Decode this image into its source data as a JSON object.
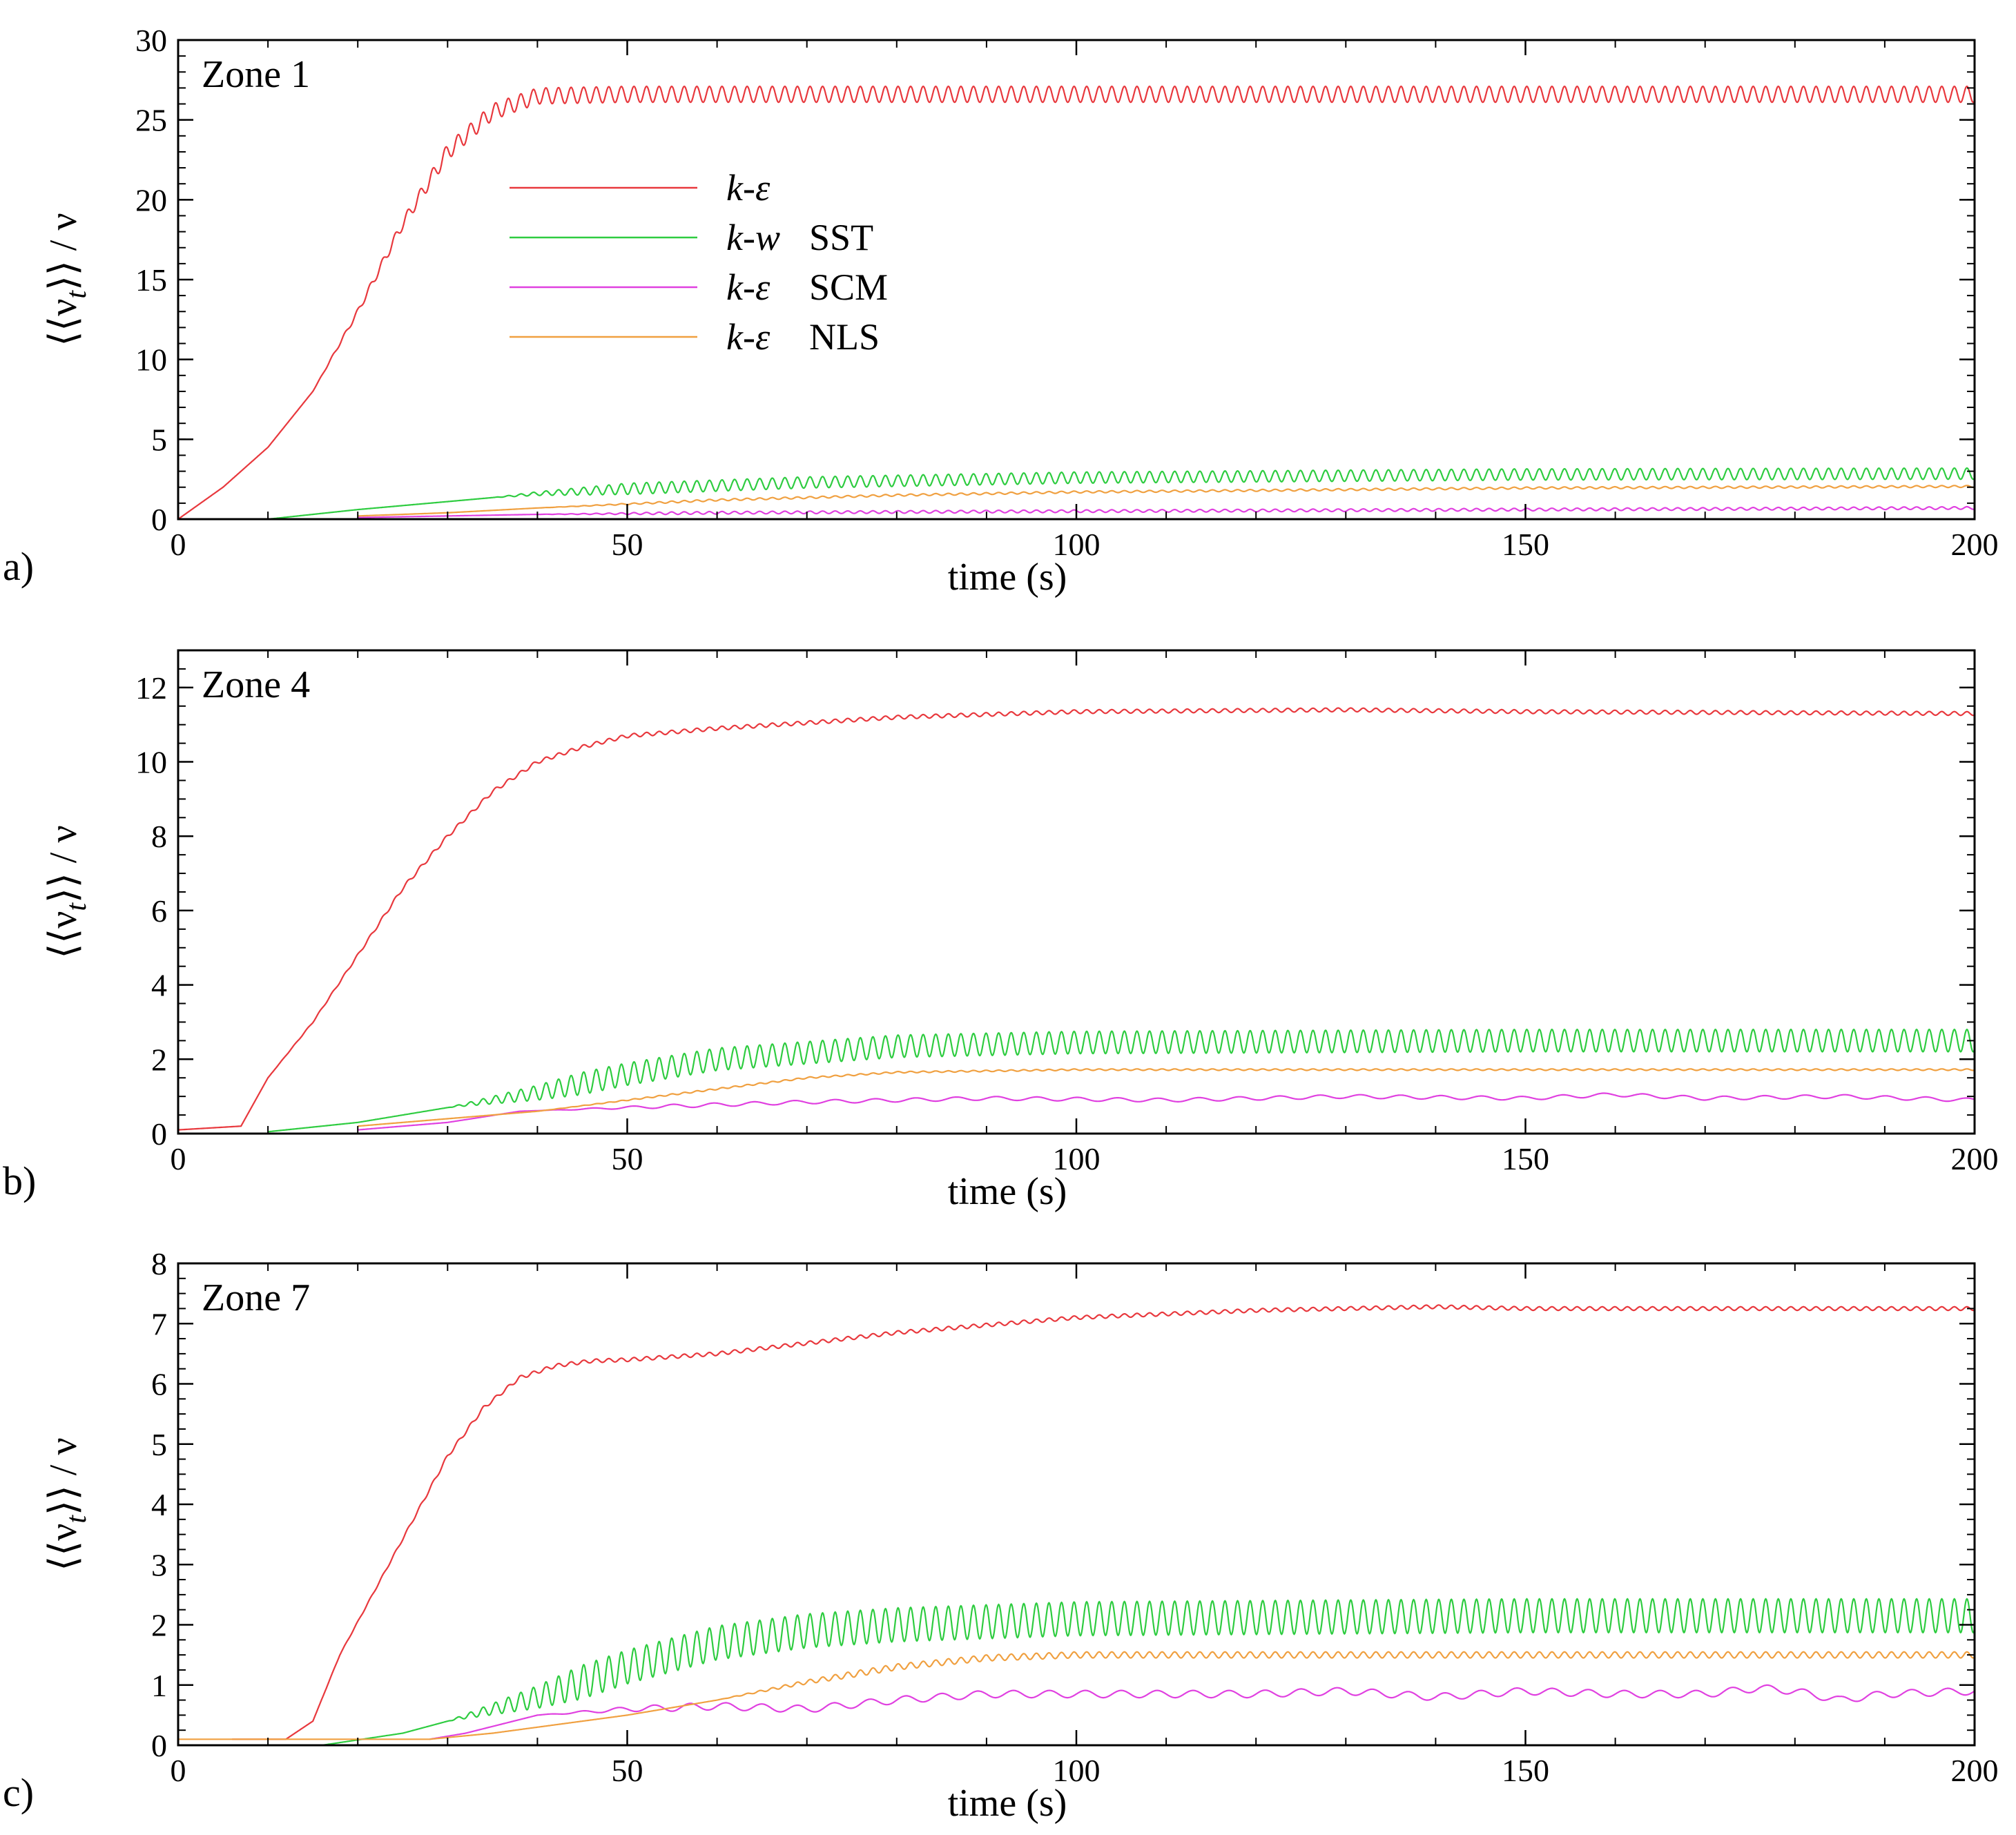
{
  "chart_data": [
    {
      "type": "line",
      "panel_label": "a)",
      "title": "Zone 1",
      "xlabel": "time (s)",
      "ylabel": "⟨⟨ν_t⟩⟩ / ν",
      "ylabel_main": "⟨⟨ν",
      "ylabel_sub": "t",
      "ylabel_tail": "⟩⟩ / ν",
      "xlim": [
        0,
        200
      ],
      "ylim": [
        0,
        30
      ],
      "xticks": [
        "0",
        "50",
        "100",
        "150",
        "200"
      ],
      "yticks": [
        "0",
        "5",
        "10",
        "15",
        "20",
        "25",
        "30"
      ],
      "legend": [
        {
          "name": "k-ε",
          "model": "k-ε",
          "suffix": "",
          "color": "#e8383d"
        },
        {
          "name": "k-w SST",
          "model": "k-w",
          "suffix": "SST",
          "color": "#2ecc40"
        },
        {
          "name": "k-ε SCM",
          "model": "k-ε",
          "suffix": "SCM",
          "color": "#e040e0"
        },
        {
          "name": "k-ε NLS",
          "model": "k-ε",
          "suffix": "NLS",
          "color": "#f0a040"
        }
      ],
      "series": [
        {
          "name": "k-ε",
          "color": "#e8383d",
          "x": [
            0,
            5,
            10,
            15,
            20,
            25,
            30,
            35,
            40,
            50,
            100,
            150,
            200
          ],
          "y": [
            0,
            2,
            4.5,
            8,
            13,
            18.5,
            23,
            25.5,
            26.5,
            26.6,
            26.6,
            26.6,
            26.6
          ],
          "osc_amp": 0.5,
          "osc_period": 1.4,
          "osc_start": 15
        },
        {
          "name": "k-w SST",
          "color": "#2ecc40",
          "x": [
            10,
            20,
            30,
            40,
            50,
            70,
            100,
            150,
            200
          ],
          "y": [
            0,
            0.6,
            1.1,
            1.6,
            1.9,
            2.3,
            2.6,
            2.8,
            2.85
          ],
          "osc_amp": 0.35,
          "osc_period": 1.4,
          "osc_start": 35
        },
        {
          "name": "k-ε SCM",
          "color": "#e040e0",
          "x": [
            20,
            40,
            60,
            100,
            150,
            200
          ],
          "y": [
            0.1,
            0.3,
            0.4,
            0.5,
            0.6,
            0.7
          ],
          "osc_amp": 0.08,
          "osc_period": 1.4,
          "osc_start": 40
        },
        {
          "name": "k-ε NLS",
          "color": "#f0a040",
          "x": [
            20,
            30,
            40,
            60,
            80,
            100,
            150,
            200
          ],
          "y": [
            0.2,
            0.4,
            0.7,
            1.2,
            1.5,
            1.7,
            1.95,
            2.05
          ],
          "osc_amp": 0.06,
          "osc_period": 1.4,
          "osc_start": 40
        }
      ]
    },
    {
      "type": "line",
      "panel_label": "b)",
      "title": "Zone 4",
      "xlabel": "time (s)",
      "ylabel": "⟨⟨ν_t⟩⟩ / ν",
      "ylabel_main": "⟨⟨ν",
      "ylabel_sub": "t",
      "ylabel_tail": "⟩⟩ / ν",
      "xlim": [
        0,
        200
      ],
      "ylim": [
        0,
        13
      ],
      "xticks": [
        "0",
        "50",
        "100",
        "150",
        "200"
      ],
      "yticks": [
        "0",
        "2",
        "4",
        "6",
        "8",
        "10",
        "12"
      ],
      "series": [
        {
          "name": "k-ε",
          "color": "#e8383d",
          "x": [
            0,
            7,
            10,
            15,
            20,
            25,
            30,
            35,
            40,
            45,
            50,
            60,
            80,
            100,
            130,
            150,
            200
          ],
          "y": [
            0.1,
            0.2,
            1.5,
            3,
            4.8,
            6.6,
            8,
            9.2,
            10,
            10.4,
            10.7,
            10.9,
            11.2,
            11.35,
            11.4,
            11.35,
            11.3
          ],
          "osc_amp": 0.05,
          "osc_period": 1.4,
          "osc_start": 10
        },
        {
          "name": "k-w SST",
          "color": "#2ecc40",
          "x": [
            10,
            20,
            30,
            40,
            50,
            60,
            80,
            100,
            150,
            200
          ],
          "y": [
            0.05,
            0.3,
            0.7,
            1.1,
            1.6,
            2.0,
            2.35,
            2.45,
            2.5,
            2.5
          ],
          "osc_amp": 0.3,
          "osc_period": 1.4,
          "osc_start": 30
        },
        {
          "name": "k-ε SCM",
          "color": "#e040e0",
          "x": [
            20,
            30,
            38,
            50,
            70,
            90,
            110,
            130,
            150,
            160,
            170,
            185,
            200
          ],
          "y": [
            0.1,
            0.3,
            0.6,
            0.7,
            0.85,
            0.95,
            0.9,
            1.0,
            0.95,
            1.05,
            0.95,
            1.0,
            0.9
          ],
          "osc_amp": 0.05,
          "osc_period": 4.5,
          "osc_start": 40
        },
        {
          "name": "k-ε NLS",
          "color": "#f0a040",
          "x": [
            20,
            30,
            40,
            50,
            60,
            70,
            80,
            100,
            150,
            200
          ],
          "y": [
            0.2,
            0.4,
            0.6,
            0.9,
            1.2,
            1.5,
            1.65,
            1.72,
            1.72,
            1.72
          ],
          "osc_amp": 0.02,
          "osc_period": 1.4,
          "osc_start": 40
        }
      ]
    },
    {
      "type": "line",
      "panel_label": "c)",
      "title": "Zone 7",
      "xlabel": "time (s)",
      "ylabel": "⟨⟨ν_t⟩⟩ / ν",
      "ylabel_main": "⟨⟨ν",
      "ylabel_sub": "t",
      "ylabel_tail": "⟩⟩ / ν",
      "xlim": [
        0,
        200
      ],
      "ylim": [
        0,
        8
      ],
      "xticks": [
        "0",
        "50",
        "100",
        "150",
        "200"
      ],
      "yticks": [
        "0",
        "1",
        "2",
        "3",
        "4",
        "5",
        "6",
        "7",
        "8"
      ],
      "series": [
        {
          "name": "k-ε",
          "color": "#e8383d",
          "x": [
            6,
            12,
            15,
            18,
            22,
            26,
            30,
            34,
            38,
            42,
            46,
            50,
            60,
            80,
            100,
            120,
            140,
            150,
            200
          ],
          "y": [
            0.1,
            0.1,
            0.4,
            1.5,
            2.6,
            3.7,
            4.8,
            5.6,
            6.1,
            6.3,
            6.38,
            6.4,
            6.5,
            6.85,
            7.1,
            7.22,
            7.28,
            7.25,
            7.25
          ],
          "osc_amp": 0.03,
          "osc_period": 1.4,
          "osc_start": 15
        },
        {
          "name": "k-w SST",
          "color": "#2ecc40",
          "x": [
            16,
            25,
            30,
            40,
            50,
            60,
            70,
            80,
            100,
            150,
            200
          ],
          "y": [
            0,
            0.2,
            0.4,
            0.8,
            1.3,
            1.7,
            1.9,
            2.0,
            2.1,
            2.15,
            2.15
          ],
          "osc_amp": 0.28,
          "osc_period": 1.4,
          "osc_start": 30
        },
        {
          "name": "k-ε SCM",
          "color": "#e040e0",
          "x": [
            28,
            32,
            40,
            50,
            60,
            70,
            80,
            90,
            100,
            110,
            120,
            130,
            140,
            150,
            160,
            170,
            176,
            180,
            185,
            190,
            200
          ],
          "y": [
            0.1,
            0.2,
            0.5,
            0.6,
            0.65,
            0.6,
            0.75,
            0.85,
            0.85,
            0.85,
            0.85,
            0.9,
            0.8,
            0.9,
            0.85,
            0.85,
            0.95,
            0.9,
            0.75,
            0.85,
            0.9
          ],
          "osc_amp": 0.06,
          "osc_period": 4.0,
          "osc_start": 40
        },
        {
          "name": "k-ε NLS",
          "color": "#f0a040",
          "x": [
            0,
            28,
            35,
            40,
            50,
            60,
            70,
            80,
            90,
            100,
            150,
            200
          ],
          "y": [
            0.1,
            0.1,
            0.2,
            0.3,
            0.5,
            0.75,
            1.05,
            1.3,
            1.45,
            1.5,
            1.5,
            1.5
          ],
          "osc_amp": 0.05,
          "osc_period": 1.4,
          "osc_start": 60
        }
      ]
    }
  ]
}
